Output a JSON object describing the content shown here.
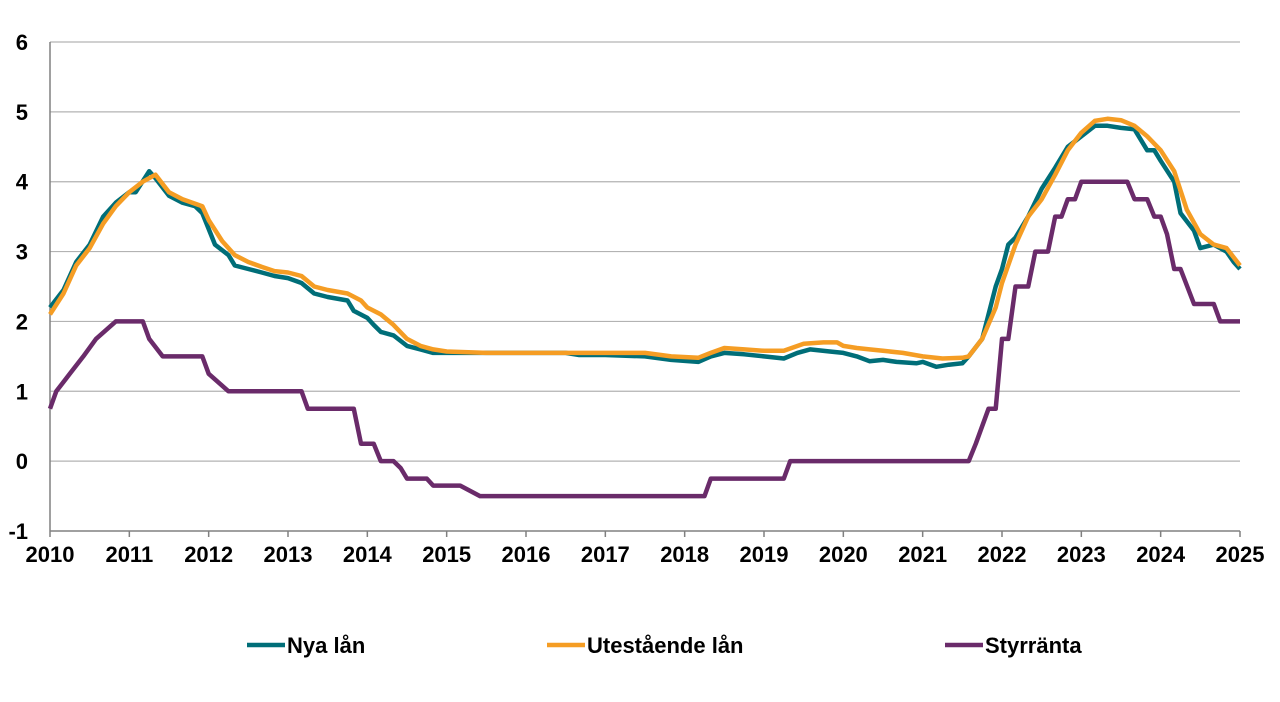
{
  "chart_data": {
    "type": "line",
    "title": "",
    "xlabel": "",
    "ylabel": "",
    "xlim": [
      2010,
      2025
    ],
    "ylim": [
      -1,
      6
    ],
    "x_ticks": [
      "2010",
      "2011",
      "2012",
      "2013",
      "2014",
      "2015",
      "2016",
      "2017",
      "2018",
      "2019",
      "2020",
      "2021",
      "2022",
      "2023",
      "2024",
      "2025"
    ],
    "y_ticks": [
      "-1",
      "0",
      "1",
      "2",
      "3",
      "4",
      "5",
      "6"
    ],
    "grid": "horizontal",
    "legend_position": "bottom",
    "series": [
      {
        "name": "Nya lån",
        "color": "#006e78",
        "points": [
          [
            2010.0,
            2.2
          ],
          [
            2010.17,
            2.45
          ],
          [
            2010.33,
            2.85
          ],
          [
            2010.5,
            3.1
          ],
          [
            2010.67,
            3.5
          ],
          [
            2010.83,
            3.7
          ],
          [
            2011.0,
            3.85
          ],
          [
            2011.08,
            3.85
          ],
          [
            2011.25,
            4.15
          ],
          [
            2011.33,
            4.05
          ],
          [
            2011.5,
            3.8
          ],
          [
            2011.67,
            3.7
          ],
          [
            2011.83,
            3.65
          ],
          [
            2011.92,
            3.55
          ],
          [
            2012.08,
            3.1
          ],
          [
            2012.25,
            2.95
          ],
          [
            2012.33,
            2.8
          ],
          [
            2012.5,
            2.75
          ],
          [
            2012.67,
            2.7
          ],
          [
            2012.83,
            2.65
          ],
          [
            2013.0,
            2.62
          ],
          [
            2013.17,
            2.55
          ],
          [
            2013.33,
            2.4
          ],
          [
            2013.5,
            2.35
          ],
          [
            2013.75,
            2.3
          ],
          [
            2013.83,
            2.15
          ],
          [
            2014.0,
            2.05
          ],
          [
            2014.08,
            1.95
          ],
          [
            2014.17,
            1.85
          ],
          [
            2014.33,
            1.8
          ],
          [
            2014.5,
            1.65
          ],
          [
            2014.67,
            1.6
          ],
          [
            2014.83,
            1.55
          ],
          [
            2015.0,
            1.55
          ],
          [
            2015.5,
            1.55
          ],
          [
            2016.0,
            1.55
          ],
          [
            2016.5,
            1.55
          ],
          [
            2016.67,
            1.52
          ],
          [
            2017.0,
            1.52
          ],
          [
            2017.5,
            1.5
          ],
          [
            2017.83,
            1.45
          ],
          [
            2018.17,
            1.42
          ],
          [
            2018.33,
            1.5
          ],
          [
            2018.5,
            1.55
          ],
          [
            2018.75,
            1.53
          ],
          [
            2019.0,
            1.5
          ],
          [
            2019.25,
            1.47
          ],
          [
            2019.42,
            1.55
          ],
          [
            2019.58,
            1.6
          ],
          [
            2019.83,
            1.57
          ],
          [
            2020.0,
            1.55
          ],
          [
            2020.17,
            1.5
          ],
          [
            2020.33,
            1.43
          ],
          [
            2020.5,
            1.45
          ],
          [
            2020.67,
            1.42
          ],
          [
            2020.92,
            1.4
          ],
          [
            2021.0,
            1.42
          ],
          [
            2021.17,
            1.35
          ],
          [
            2021.33,
            1.38
          ],
          [
            2021.5,
            1.4
          ],
          [
            2021.58,
            1.5
          ],
          [
            2021.75,
            1.75
          ],
          [
            2021.92,
            2.5
          ],
          [
            2022.0,
            2.75
          ],
          [
            2022.08,
            3.1
          ],
          [
            2022.17,
            3.2
          ],
          [
            2022.33,
            3.5
          ],
          [
            2022.5,
            3.9
          ],
          [
            2022.67,
            4.2
          ],
          [
            2022.83,
            4.5
          ],
          [
            2023.0,
            4.65
          ],
          [
            2023.17,
            4.8
          ],
          [
            2023.33,
            4.8
          ],
          [
            2023.5,
            4.77
          ],
          [
            2023.67,
            4.75
          ],
          [
            2023.83,
            4.45
          ],
          [
            2023.92,
            4.45
          ],
          [
            2024.0,
            4.3
          ],
          [
            2024.17,
            4.0
          ],
          [
            2024.25,
            3.55
          ],
          [
            2024.42,
            3.3
          ],
          [
            2024.5,
            3.05
          ],
          [
            2024.67,
            3.1
          ],
          [
            2024.83,
            3.0
          ],
          [
            2024.92,
            2.85
          ],
          [
            2025.0,
            2.75
          ]
        ]
      },
      {
        "name": "Utestående lån",
        "color": "#f59d24",
        "points": [
          [
            2010.0,
            2.1
          ],
          [
            2010.17,
            2.4
          ],
          [
            2010.33,
            2.8
          ],
          [
            2010.5,
            3.05
          ],
          [
            2010.67,
            3.4
          ],
          [
            2010.83,
            3.65
          ],
          [
            2011.0,
            3.85
          ],
          [
            2011.17,
            4.0
          ],
          [
            2011.33,
            4.1
          ],
          [
            2011.5,
            3.85
          ],
          [
            2011.67,
            3.75
          ],
          [
            2011.92,
            3.65
          ],
          [
            2012.0,
            3.45
          ],
          [
            2012.17,
            3.15
          ],
          [
            2012.33,
            2.95
          ],
          [
            2012.5,
            2.85
          ],
          [
            2012.67,
            2.78
          ],
          [
            2012.83,
            2.72
          ],
          [
            2013.0,
            2.7
          ],
          [
            2013.17,
            2.65
          ],
          [
            2013.33,
            2.5
          ],
          [
            2013.5,
            2.45
          ],
          [
            2013.75,
            2.4
          ],
          [
            2013.92,
            2.3
          ],
          [
            2014.0,
            2.2
          ],
          [
            2014.17,
            2.1
          ],
          [
            2014.33,
            1.95
          ],
          [
            2014.5,
            1.75
          ],
          [
            2014.67,
            1.65
          ],
          [
            2014.83,
            1.6
          ],
          [
            2015.0,
            1.57
          ],
          [
            2015.5,
            1.55
          ],
          [
            2016.0,
            1.55
          ],
          [
            2016.5,
            1.55
          ],
          [
            2017.0,
            1.55
          ],
          [
            2017.5,
            1.55
          ],
          [
            2017.83,
            1.5
          ],
          [
            2018.17,
            1.48
          ],
          [
            2018.33,
            1.55
          ],
          [
            2018.5,
            1.62
          ],
          [
            2018.75,
            1.6
          ],
          [
            2019.0,
            1.58
          ],
          [
            2019.25,
            1.58
          ],
          [
            2019.5,
            1.68
          ],
          [
            2019.75,
            1.7
          ],
          [
            2019.92,
            1.7
          ],
          [
            2020.0,
            1.65
          ],
          [
            2020.17,
            1.62
          ],
          [
            2020.33,
            1.6
          ],
          [
            2020.5,
            1.58
          ],
          [
            2020.75,
            1.55
          ],
          [
            2021.0,
            1.5
          ],
          [
            2021.25,
            1.47
          ],
          [
            2021.5,
            1.48
          ],
          [
            2021.58,
            1.5
          ],
          [
            2021.75,
            1.75
          ],
          [
            2021.92,
            2.2
          ],
          [
            2022.0,
            2.55
          ],
          [
            2022.17,
            3.1
          ],
          [
            2022.33,
            3.5
          ],
          [
            2022.5,
            3.75
          ],
          [
            2022.67,
            4.1
          ],
          [
            2022.83,
            4.45
          ],
          [
            2023.0,
            4.7
          ],
          [
            2023.17,
            4.87
          ],
          [
            2023.33,
            4.9
          ],
          [
            2023.5,
            4.88
          ],
          [
            2023.67,
            4.8
          ],
          [
            2023.83,
            4.65
          ],
          [
            2024.0,
            4.45
          ],
          [
            2024.17,
            4.15
          ],
          [
            2024.33,
            3.6
          ],
          [
            2024.5,
            3.25
          ],
          [
            2024.67,
            3.1
          ],
          [
            2024.83,
            3.05
          ],
          [
            2025.0,
            2.8
          ]
        ]
      },
      {
        "name": "Styrränta",
        "color": "#6a2b6a",
        "points": [
          [
            2010.0,
            0.75
          ],
          [
            2010.08,
            1.0
          ],
          [
            2010.25,
            1.25
          ],
          [
            2010.42,
            1.5
          ],
          [
            2010.58,
            1.75
          ],
          [
            2010.83,
            2.0
          ],
          [
            2011.17,
            2.0
          ],
          [
            2011.25,
            1.75
          ],
          [
            2011.42,
            1.5
          ],
          [
            2011.92,
            1.5
          ],
          [
            2012.0,
            1.25
          ],
          [
            2012.25,
            1.0
          ],
          [
            2013.17,
            1.0
          ],
          [
            2013.25,
            0.75
          ],
          [
            2013.83,
            0.75
          ],
          [
            2013.92,
            0.25
          ],
          [
            2014.08,
            0.25
          ],
          [
            2014.17,
            0.0
          ],
          [
            2014.33,
            0.0
          ],
          [
            2014.42,
            -0.1
          ],
          [
            2014.5,
            -0.25
          ],
          [
            2014.75,
            -0.25
          ],
          [
            2014.83,
            -0.35
          ],
          [
            2015.17,
            -0.35
          ],
          [
            2015.42,
            -0.5
          ],
          [
            2018.25,
            -0.5
          ],
          [
            2018.33,
            -0.25
          ],
          [
            2019.25,
            -0.25
          ],
          [
            2019.33,
            0.0
          ],
          [
            2021.58,
            0.0
          ],
          [
            2021.67,
            0.25
          ],
          [
            2021.83,
            0.75
          ],
          [
            2021.92,
            0.75
          ],
          [
            2022.0,
            1.75
          ],
          [
            2022.08,
            1.75
          ],
          [
            2022.17,
            2.5
          ],
          [
            2022.33,
            2.5
          ],
          [
            2022.42,
            3.0
          ],
          [
            2022.58,
            3.0
          ],
          [
            2022.67,
            3.5
          ],
          [
            2022.75,
            3.5
          ],
          [
            2022.83,
            3.75
          ],
          [
            2022.92,
            3.75
          ],
          [
            2023.0,
            4.0
          ],
          [
            2023.58,
            4.0
          ],
          [
            2023.67,
            3.75
          ],
          [
            2023.83,
            3.75
          ],
          [
            2023.92,
            3.5
          ],
          [
            2024.0,
            3.5
          ],
          [
            2024.08,
            3.25
          ],
          [
            2024.17,
            2.75
          ],
          [
            2024.25,
            2.75
          ],
          [
            2024.42,
            2.25
          ],
          [
            2024.67,
            2.25
          ],
          [
            2024.75,
            2.0
          ],
          [
            2025.0,
            2.0
          ]
        ]
      }
    ]
  }
}
